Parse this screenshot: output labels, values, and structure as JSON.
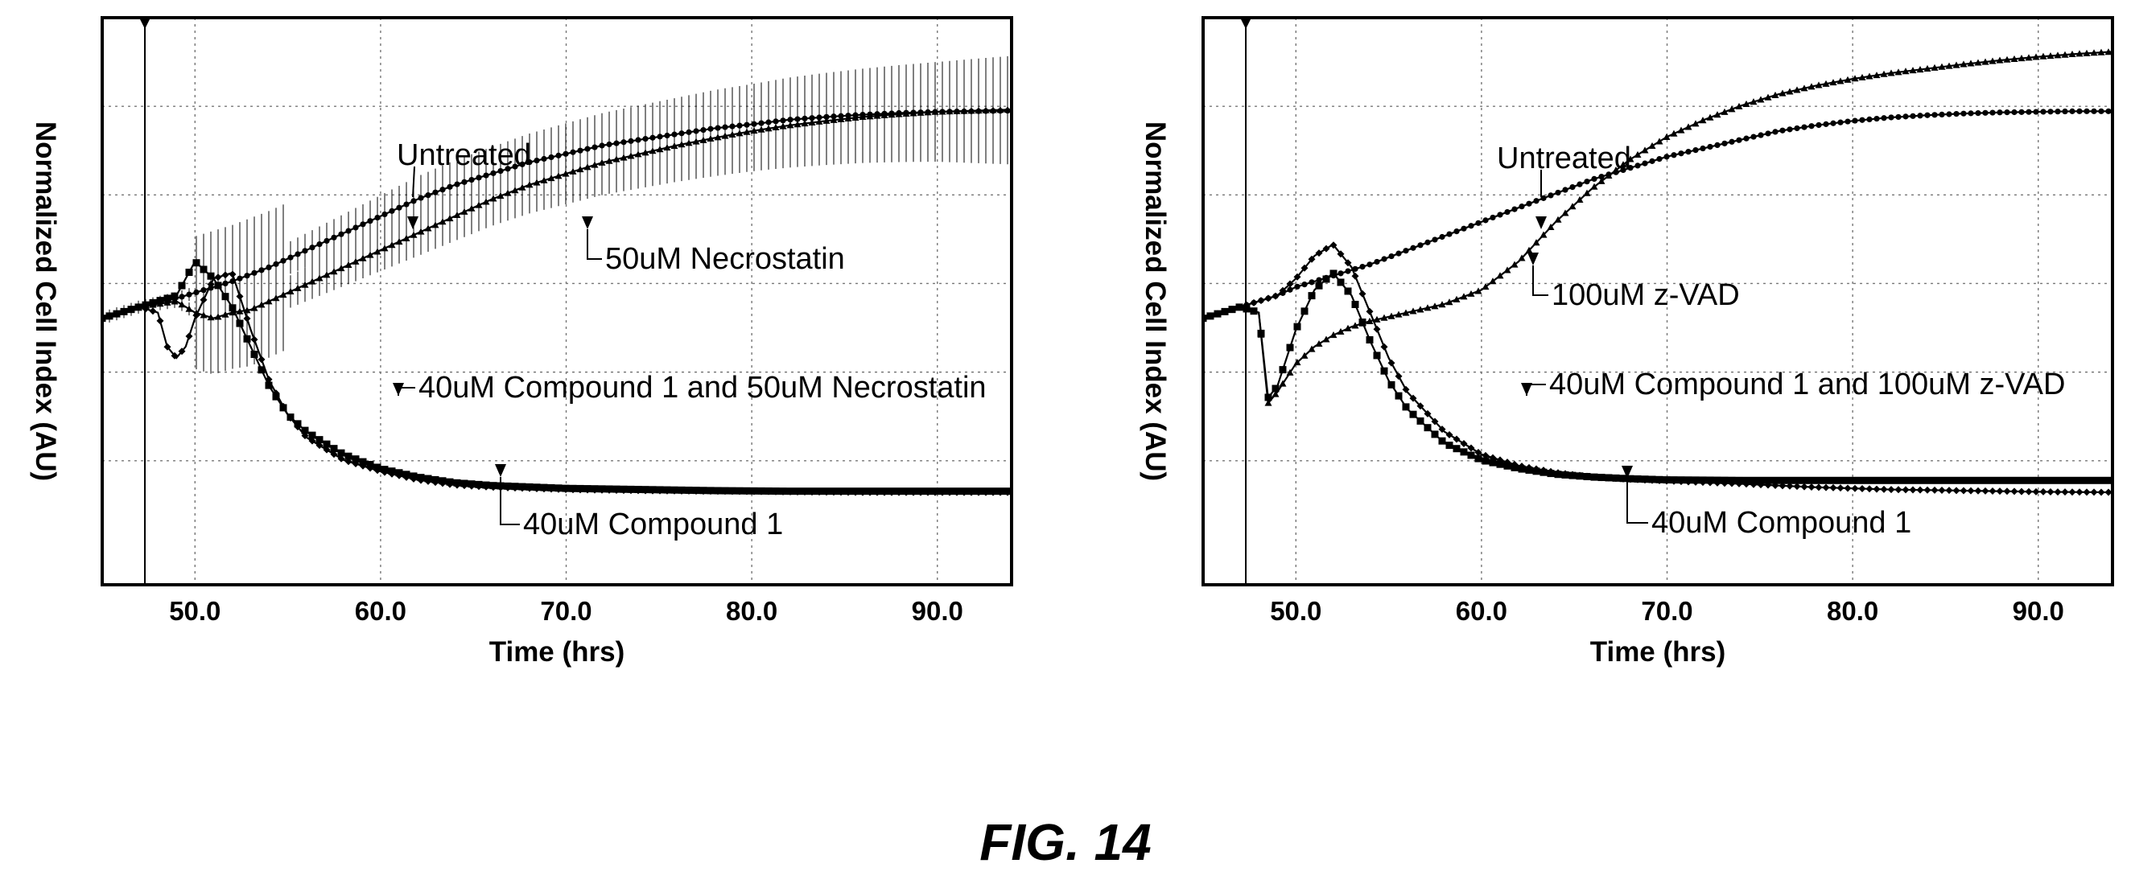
{
  "figure": {
    "caption": "FIG. 14"
  },
  "chart_data": [
    {
      "type": "line",
      "xlabel": "Time (hrs)",
      "ylabel": "Normalized Cell Index (AU)",
      "xlim": [
        45.0,
        94.0
      ],
      "ylim": [
        0.0,
        1.0
      ],
      "xticks": [
        "50.0",
        "60.0",
        "70.0",
        "80.0",
        "90.0"
      ],
      "grid": true,
      "treatment_marker_x": 47.3,
      "series": [
        {
          "name": "Untreated",
          "marker": "circle",
          "error_bars": true,
          "x": [
            45.0,
            47.0,
            49.0,
            50.0,
            52.0,
            54.0,
            56.0,
            58.0,
            60.0,
            62.0,
            64.0,
            66.0,
            68.0,
            70.0,
            72.0,
            74.0,
            76.0,
            78.0,
            80.0,
            82.0,
            84.0,
            86.0,
            88.0,
            90.0,
            92.0,
            94.0
          ],
          "y": [
            0.47,
            0.49,
            0.505,
            0.515,
            0.535,
            0.56,
            0.59,
            0.62,
            0.65,
            0.68,
            0.705,
            0.725,
            0.745,
            0.76,
            0.775,
            0.785,
            0.795,
            0.805,
            0.812,
            0.82,
            0.825,
            0.829,
            0.832,
            0.834,
            0.835,
            0.836
          ]
        },
        {
          "name": "50uM Necrostatin",
          "marker": "triangle",
          "error_bars": true,
          "x": [
            45.0,
            47.0,
            49.0,
            50.0,
            51.0,
            52.0,
            53.0,
            54.0,
            56.0,
            58.0,
            60.0,
            62.0,
            64.0,
            66.0,
            68.0,
            70.0,
            72.0,
            74.0,
            76.0,
            78.0,
            80.0,
            82.0,
            84.0,
            86.0,
            88.0,
            90.0,
            92.0,
            94.0
          ],
          "y": [
            0.47,
            0.49,
            0.5,
            0.48,
            0.47,
            0.48,
            0.485,
            0.5,
            0.53,
            0.56,
            0.59,
            0.62,
            0.65,
            0.68,
            0.705,
            0.725,
            0.745,
            0.76,
            0.775,
            0.788,
            0.8,
            0.81,
            0.818,
            0.825,
            0.83,
            0.834,
            0.836,
            0.838
          ]
        },
        {
          "name": "40uM Compound 1 and 50uM Necrostatin",
          "marker": "square",
          "error_bars": false,
          "x": [
            45.0,
            47.0,
            48.0,
            49.0,
            50.0,
            51.0,
            52.0,
            53.0,
            54.0,
            55.0,
            56.0,
            58.0,
            60.0,
            62.0,
            64.0,
            66.0,
            70.0,
            74.0,
            78.0,
            82.0,
            86.0,
            90.0,
            94.0
          ],
          "y": [
            0.47,
            0.49,
            0.5,
            0.51,
            0.57,
            0.54,
            0.49,
            0.42,
            0.35,
            0.3,
            0.27,
            0.23,
            0.205,
            0.19,
            0.18,
            0.175,
            0.17,
            0.168,
            0.166,
            0.165,
            0.165,
            0.165,
            0.165
          ]
        },
        {
          "name": "40uM Compound 1",
          "marker": "diamond",
          "error_bars": false,
          "x": [
            45.0,
            47.0,
            48.0,
            48.5,
            49.0,
            49.5,
            50.0,
            51.0,
            52.0,
            53.0,
            54.0,
            55.0,
            56.0,
            58.0,
            60.0,
            62.0,
            64.0,
            66.0,
            70.0,
            74.0,
            78.0,
            82.0,
            86.0,
            90.0,
            94.0
          ],
          "y": [
            0.47,
            0.49,
            0.48,
            0.42,
            0.4,
            0.42,
            0.47,
            0.54,
            0.55,
            0.45,
            0.36,
            0.3,
            0.26,
            0.22,
            0.2,
            0.185,
            0.176,
            0.172,
            0.168,
            0.166,
            0.165,
            0.164,
            0.163,
            0.163,
            0.163
          ]
        }
      ],
      "annotations": [
        {
          "text": "Untreated",
          "target": "Untreated"
        },
        {
          "text": "50uM Necrostatin",
          "target": "50uM Necrostatin"
        },
        {
          "text": "40uM Compound 1 and 50uM Necrostatin",
          "target": "40uM Compound 1 and 50uM Necrostatin"
        },
        {
          "text": "40uM Compound 1",
          "target": "40uM Compound 1"
        }
      ]
    },
    {
      "type": "line",
      "xlabel": "Time (hrs)",
      "ylabel": "Normalized Cell Index (AU)",
      "xlim": [
        45.0,
        94.0
      ],
      "ylim": [
        0.0,
        1.0
      ],
      "xticks": [
        "50.0",
        "60.0",
        "70.0",
        "80.0",
        "90.0"
      ],
      "grid": true,
      "treatment_marker_x": 47.3,
      "series": [
        {
          "name": "Untreated",
          "marker": "circle",
          "error_bars": false,
          "x": [
            45.0,
            47.0,
            49.0,
            50.0,
            52.0,
            54.0,
            56.0,
            58.0,
            60.0,
            62.0,
            64.0,
            66.0,
            68.0,
            70.0,
            72.0,
            74.0,
            76.0,
            78.0,
            80.0,
            82.0,
            84.0,
            86.0,
            88.0,
            90.0,
            92.0,
            94.0
          ],
          "y": [
            0.47,
            0.49,
            0.51,
            0.525,
            0.545,
            0.565,
            0.59,
            0.615,
            0.64,
            0.665,
            0.69,
            0.715,
            0.735,
            0.755,
            0.77,
            0.785,
            0.8,
            0.81,
            0.818,
            0.824,
            0.828,
            0.831,
            0.833,
            0.834,
            0.835,
            0.835
          ]
        },
        {
          "name": "100uM z-VAD",
          "marker": "triangle",
          "error_bars": false,
          "x": [
            45.0,
            47.0,
            48.0,
            48.5,
            49.0,
            50.0,
            51.0,
            52.0,
            53.0,
            54.0,
            56.0,
            58.0,
            60.0,
            62.0,
            64.0,
            66.0,
            68.0,
            70.0,
            72.0,
            74.0,
            76.0,
            78.0,
            80.0,
            82.0,
            84.0,
            86.0,
            88.0,
            90.0,
            92.0,
            94.0
          ],
          "y": [
            0.47,
            0.49,
            0.48,
            0.32,
            0.34,
            0.39,
            0.42,
            0.44,
            0.455,
            0.465,
            0.48,
            0.495,
            0.52,
            0.57,
            0.64,
            0.7,
            0.75,
            0.79,
            0.82,
            0.845,
            0.865,
            0.88,
            0.892,
            0.902,
            0.91,
            0.918,
            0.925,
            0.931,
            0.936,
            0.94
          ]
        },
        {
          "name": "40uM Compound 1 and 100uM z-VAD",
          "marker": "square",
          "error_bars": false,
          "x": [
            45.0,
            47.0,
            48.0,
            48.5,
            49.0,
            49.5,
            50.0,
            51.0,
            52.0,
            53.0,
            54.0,
            55.0,
            56.0,
            58.0,
            60.0,
            62.0,
            64.0,
            66.0,
            68.0,
            70.0,
            74.0,
            78.0,
            82.0,
            86.0,
            90.0,
            94.0
          ],
          "y": [
            0.47,
            0.49,
            0.48,
            0.33,
            0.35,
            0.4,
            0.45,
            0.52,
            0.55,
            0.51,
            0.43,
            0.36,
            0.31,
            0.25,
            0.22,
            0.205,
            0.195,
            0.19,
            0.187,
            0.185,
            0.184,
            0.184,
            0.184,
            0.184,
            0.184,
            0.184
          ]
        },
        {
          "name": "40uM Compound 1",
          "marker": "diamond",
          "error_bars": false,
          "x": [
            45.0,
            47.0,
            48.0,
            49.0,
            50.0,
            51.0,
            52.0,
            53.0,
            54.0,
            55.0,
            56.0,
            58.0,
            60.0,
            62.0,
            64.0,
            66.0,
            68.0,
            70.0,
            74.0,
            78.0,
            82.0,
            86.0,
            90.0,
            94.0
          ],
          "y": [
            0.47,
            0.49,
            0.5,
            0.51,
            0.54,
            0.58,
            0.6,
            0.56,
            0.48,
            0.4,
            0.34,
            0.27,
            0.23,
            0.21,
            0.198,
            0.19,
            0.186,
            0.183,
            0.178,
            0.172,
            0.168,
            0.166,
            0.164,
            0.163
          ]
        }
      ],
      "annotations": [
        {
          "text": "Untreated",
          "target": "Untreated"
        },
        {
          "text": "100uM z-VAD",
          "target": "100uM z-VAD"
        },
        {
          "text": "40uM Compound 1 and 100uM z-VAD",
          "target": "40uM Compound 1 and 100uM z-VAD"
        },
        {
          "text": "40uM Compound 1",
          "target": "40uM Compound 1"
        }
      ]
    }
  ]
}
